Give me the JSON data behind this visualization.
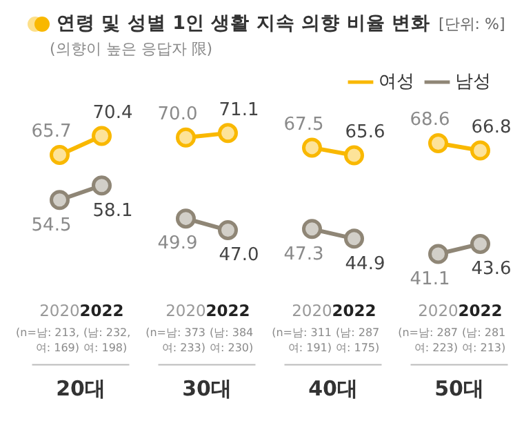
{
  "chart_data": {
    "type": "line",
    "title": "연령 및 성별 1인 생활 지속 의향 비율 변화",
    "subtitle": "(의향이 높은 응답자 限)",
    "categories": [
      "2020",
      "2022",
      null,
      "2020",
      "2022",
      null,
      "2020",
      "2022",
      null,
      "2020",
      "2022"
    ],
    "series": [
      {
        "name": "여성",
        "color": "#f9b800",
        "values": [
          65.7,
          70.4,
          null,
          70.0,
          71.1,
          null,
          67.5,
          65.6,
          null,
          68.6,
          66.8
        ],
        "value_labels": [
          "65.7",
          "70.4",
          null,
          "70.0",
          "71.1",
          null,
          "67.5",
          "65.6",
          null,
          "68.6",
          "66.8"
        ]
      },
      {
        "name": "남성",
        "color": "#8f8676",
        "values": [
          54.5,
          58.1,
          null,
          49.9,
          47.0,
          null,
          47.3,
          44.9,
          null,
          41.1,
          43.6
        ],
        "value_labels": [
          "54.5",
          "58.1",
          null,
          "49.9",
          "47.0",
          null,
          "47.3",
          "44.9",
          null,
          "41.1",
          "43.6"
        ]
      }
    ],
    "annotations": [
      "[단위: %]",
      "(n=남: 213,\n 여: 169)",
      "(남: 232,\n여: 198)",
      "(n=남: 373\n 여: 233)",
      "(남: 384\n여: 230)",
      "(n=남: 311\n 여: 191)",
      "(남: 287\n여: 175)",
      "(n=남: 287\n 여: 223)",
      "(남: 281\n여: 213)",
      "20대",
      "30대",
      "40대",
      "50대"
    ],
    "legend": "top right",
    "marker": "circle",
    "line_style": "solid",
    "grid": false
  }
}
